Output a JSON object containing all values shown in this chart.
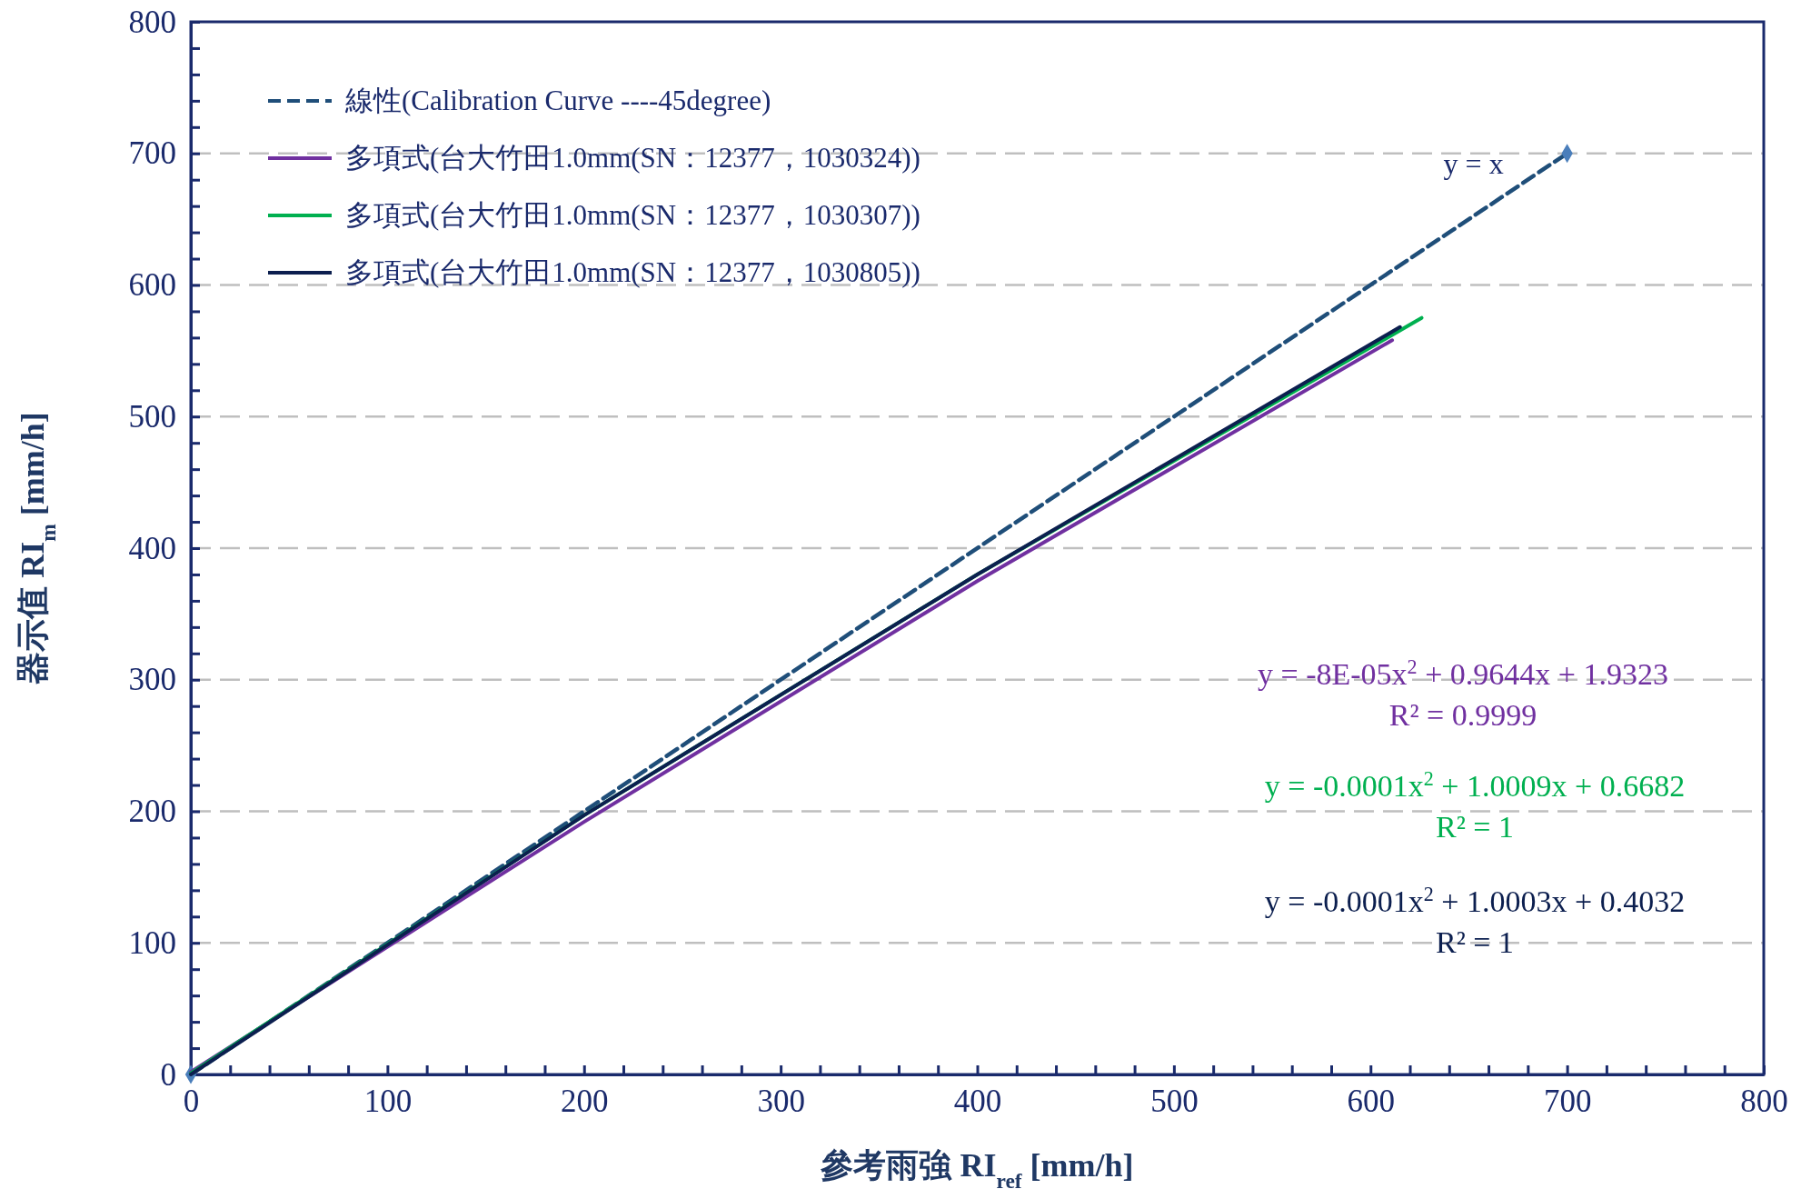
{
  "chart_data": {
    "type": "line",
    "xlabel": "參考雨強 RI$_{ref}$ [mm/h]",
    "ylabel": "器示值 RI$_{m}$ [mm/h]",
    "xlim": [
      0,
      800
    ],
    "ylim": [
      0,
      800
    ],
    "xticks": [
      0,
      {
        "value": 20,
        "label": null
      },
      {
        "value": 40,
        "label": null
      },
      {
        "value": 60,
        "label": null
      },
      {
        "value": 80,
        "label": null
      },
      100,
      {
        "value": 120,
        "label": null
      },
      {
        "value": 140,
        "label": null
      },
      {
        "value": 160,
        "label": null
      },
      {
        "value": 180,
        "label": null
      },
      200,
      {
        "value": 220,
        "label": null
      },
      {
        "value": 240,
        "label": null
      },
      {
        "value": 260,
        "label": null
      },
      {
        "value": 280,
        "label": null
      },
      300,
      {
        "value": 320,
        "label": null
      },
      {
        "value": 340,
        "label": null
      },
      {
        "value": 360,
        "label": null
      },
      {
        "value": 380,
        "label": null
      },
      400,
      {
        "value": 420,
        "label": null
      },
      {
        "value": 440,
        "label": null
      },
      {
        "value": 460,
        "label": null
      },
      {
        "value": 480,
        "label": null
      },
      500,
      {
        "value": 520,
        "label": null
      },
      {
        "value": 540,
        "label": null
      },
      {
        "value": 560,
        "label": null
      },
      {
        "value": 580,
        "label": null
      },
      600,
      {
        "value": 620,
        "label": null
      },
      {
        "value": 640,
        "label": null
      },
      {
        "value": 660,
        "label": null
      },
      {
        "value": 680,
        "label": null
      },
      700,
      {
        "value": 720,
        "label": null
      },
      {
        "value": 740,
        "label": null
      },
      {
        "value": 760,
        "label": null
      },
      {
        "value": 780,
        "label": null
      },
      800
    ],
    "yticks": [
      0,
      {
        "value": 20,
        "label": null
      },
      {
        "value": 40,
        "label": null
      },
      {
        "value": 60,
        "label": null
      },
      {
        "value": 80,
        "label": null
      },
      100,
      {
        "value": 120,
        "label": null
      },
      {
        "value": 140,
        "label": null
      },
      {
        "value": 160,
        "label": null
      },
      {
        "value": 180,
        "label": null
      },
      200,
      {
        "value": 220,
        "label": null
      },
      {
        "value": 240,
        "label": null
      },
      {
        "value": 260,
        "label": null
      },
      {
        "value": 280,
        "label": null
      },
      300,
      {
        "value": 320,
        "label": null
      },
      {
        "value": 340,
        "label": null
      },
      {
        "value": 360,
        "label": null
      },
      {
        "value": 380,
        "label": null
      },
      400,
      {
        "value": 420,
        "label": null
      },
      {
        "value": 440,
        "label": null
      },
      {
        "value": 460,
        "label": null
      },
      {
        "value": 480,
        "label": null
      },
      500,
      {
        "value": 520,
        "label": null
      },
      {
        "value": 540,
        "label": null
      },
      {
        "value": 560,
        "label": null
      },
      {
        "value": 580,
        "label": null
      },
      600,
      {
        "value": 620,
        "label": null
      },
      {
        "value": 640,
        "label": null
      },
      {
        "value": 660,
        "label": null
      },
      {
        "value": 680,
        "label": null
      },
      700,
      {
        "value": 720,
        "label": null
      },
      {
        "value": 740,
        "label": null
      },
      {
        "value": 760,
        "label": null
      },
      {
        "value": 780,
        "label": null
      },
      800
    ],
    "grid": "y",
    "legend": "top left",
    "series": [
      {
        "name": "線性(Calibration Curve ----45degree)",
        "color": "#1f4e79",
        "x": [
          0,
          700
        ],
        "values": [
          0,
          700
        ],
        "line_style": "dashed",
        "marker": "diamond"
      },
      {
        "name": "多項式(台大竹田1.0mm(SN：12377，1030324))",
        "color": "#7030a0",
        "x": [
          0,
          200,
          400,
          611
        ],
        "values": [
          2,
          192,
          375,
          558
        ],
        "line_style": "solid",
        "marker": "none"
      },
      {
        "name": "多項式(台大竹田1.0mm(SN：12377，1030307))",
        "color": "#00b050",
        "x": [
          0,
          200,
          400,
          626
        ],
        "values": [
          1,
          197,
          380,
          575
        ],
        "line_style": "solid",
        "marker": "none"
      },
      {
        "name": "多項式(台大竹田1.0mm(SN：12377，1030805))",
        "color": "#0c1f4f",
        "x": [
          0,
          200,
          400,
          615
        ],
        "values": [
          0,
          197,
          380,
          568
        ],
        "line_style": "solid",
        "marker": "none"
      }
    ],
    "annotations": [
      {
        "text": "y = x",
        "x": 700,
        "y": 700
      },
      "y = -8E-05x$^{2}$ + 0.9644x + 1.9323",
      "R² = 0.9999",
      "y = -0.0001x$^{2}$ + 1.0009x + 0.6682",
      "R² = 1",
      "y = -0.0001x$^{2}$ + 1.0003x + 0.4032",
      "R² = 1"
    ]
  }
}
